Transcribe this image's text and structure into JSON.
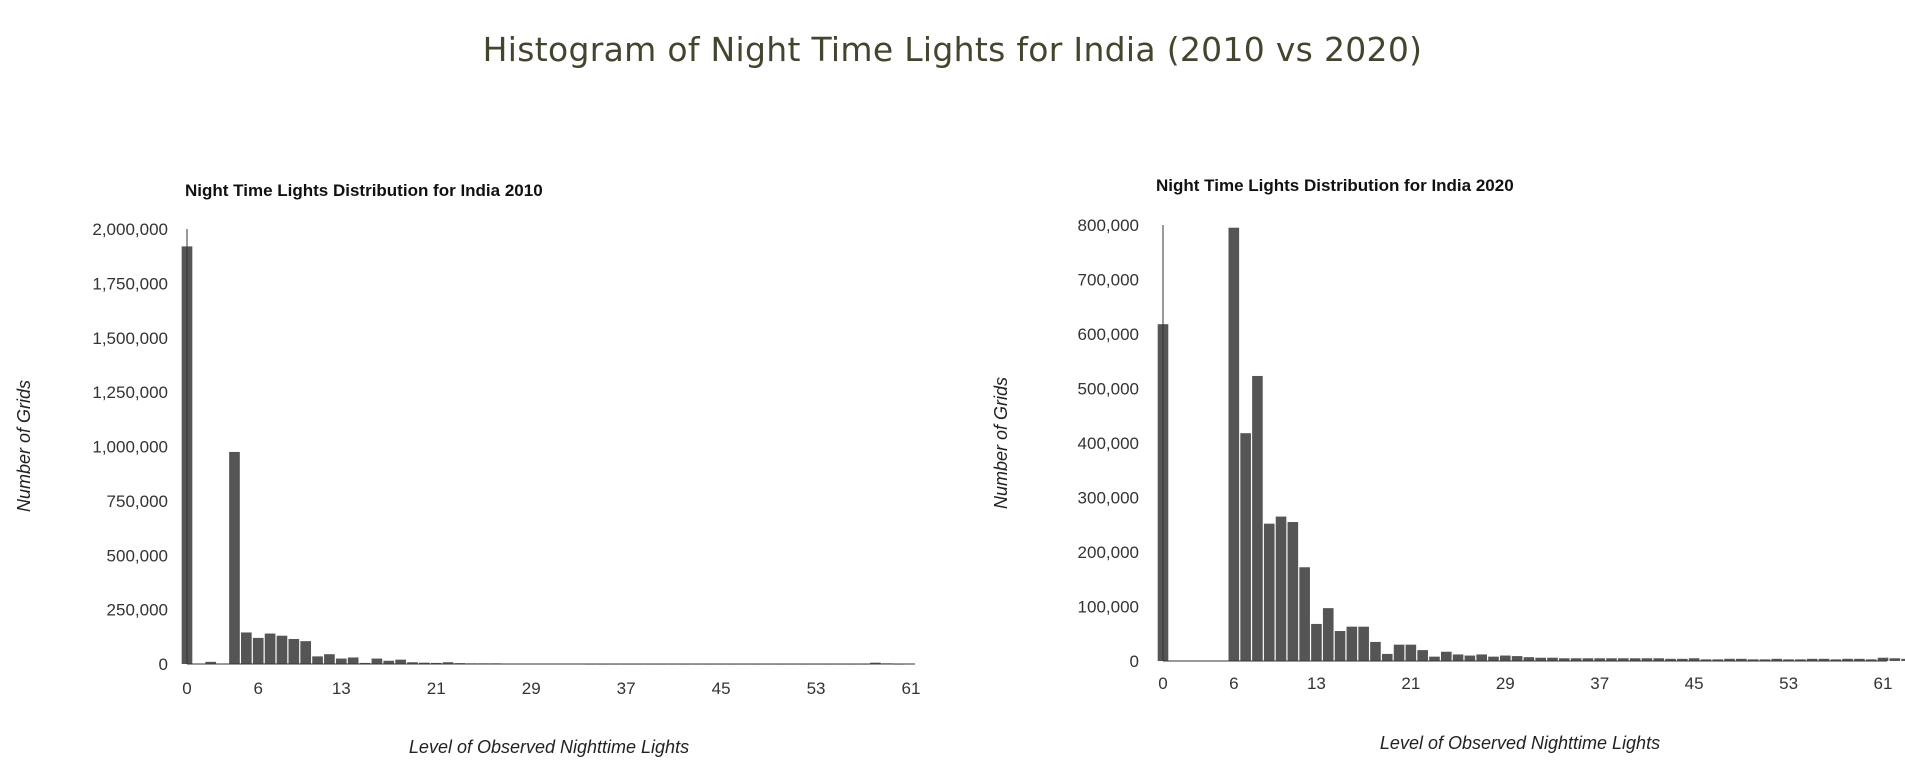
{
  "page_title": "Histogram of Night Time Lights for India (2010 vs 2020)",
  "chart_data": [
    {
      "type": "bar",
      "title": "Night Time Lights Distribution for India 2010",
      "xlabel": "Level of Observed Nighttime Lights",
      "ylabel": "Number of Grids",
      "xlim": [
        0,
        61
      ],
      "ylim": [
        0,
        2000000
      ],
      "x_ticks": [
        0,
        6,
        13,
        21,
        29,
        37,
        45,
        53,
        61
      ],
      "y_ticks": [
        0,
        250000,
        500000,
        750000,
        1000000,
        1250000,
        1500000,
        1750000,
        2000000
      ],
      "y_tick_labels": [
        "0",
        "250,000",
        "500,000",
        "750,000",
        "1,000,000",
        "1,250,000",
        "1,500,000",
        "1,750,000",
        "2,000,000"
      ],
      "x": [
        0,
        1,
        2,
        3,
        4,
        5,
        6,
        7,
        8,
        9,
        10,
        11,
        12,
        13,
        14,
        15,
        16,
        17,
        18,
        19,
        20,
        21,
        22,
        23,
        24,
        25,
        26,
        27,
        28,
        29,
        30,
        31,
        32,
        33,
        34,
        35,
        36,
        37,
        38,
        39,
        40,
        41,
        42,
        43,
        44,
        45,
        46,
        47,
        48,
        49,
        50,
        51,
        52,
        53,
        54,
        55,
        56,
        57,
        58,
        59,
        60
      ],
      "values": [
        1920000,
        0,
        10000,
        0,
        975000,
        145000,
        120000,
        140000,
        130000,
        115000,
        105000,
        35000,
        45000,
        25000,
        30000,
        5000,
        25000,
        15000,
        20000,
        8000,
        6000,
        5000,
        8000,
        4000,
        3000,
        3000,
        3000,
        2000,
        2000,
        2000,
        2000,
        1500,
        1500,
        1500,
        1000,
        1000,
        1000,
        1000,
        1000,
        1000,
        1000,
        1000,
        1000,
        1000,
        1000,
        1000,
        1000,
        1000,
        1000,
        1000,
        1000,
        1000,
        1000,
        1000,
        1000,
        1000,
        1000,
        1000,
        6000,
        3000,
        1000
      ]
    },
    {
      "type": "bar",
      "title": "Night Time Lights Distribution for India 2020",
      "xlabel": "Level of Observed Nighttime Lights",
      "ylabel": "Number of Grids",
      "xlim": [
        0,
        61
      ],
      "ylim": [
        0,
        800000
      ],
      "x_ticks": [
        0,
        6,
        13,
        21,
        29,
        37,
        45,
        53,
        61
      ],
      "y_ticks": [
        0,
        100000,
        200000,
        300000,
        400000,
        500000,
        600000,
        700000,
        800000
      ],
      "y_tick_labels": [
        "0",
        "100,000",
        "200,000",
        "300,000",
        "400,000",
        "500,000",
        "600,000",
        "700,000",
        "800,000"
      ],
      "x": [
        0,
        1,
        2,
        3,
        4,
        5,
        6,
        7,
        8,
        9,
        10,
        11,
        12,
        13,
        14,
        15,
        16,
        17,
        18,
        19,
        20,
        21,
        22,
        23,
        24,
        25,
        26,
        27,
        28,
        29,
        30,
        31,
        32,
        33,
        34,
        35,
        36,
        37,
        38,
        39,
        40,
        41,
        42,
        43,
        44,
        45,
        46,
        47,
        48,
        49,
        50,
        51,
        52,
        53,
        54,
        55,
        56,
        57,
        58,
        59,
        60,
        61,
        62,
        63
      ],
      "values": [
        618000,
        0,
        0,
        0,
        0,
        0,
        795000,
        418000,
        523000,
        252000,
        265000,
        255000,
        172000,
        68000,
        97000,
        55000,
        63000,
        63000,
        35000,
        13000,
        30000,
        30000,
        20000,
        8000,
        17000,
        12000,
        10000,
        12000,
        8000,
        10000,
        9000,
        7000,
        6000,
        6000,
        5000,
        5000,
        5000,
        5000,
        5000,
        5000,
        5000,
        5000,
        5000,
        4000,
        4000,
        5000,
        3000,
        3000,
        4000,
        4000,
        3000,
        3000,
        4000,
        3000,
        3000,
        4000,
        4000,
        3000,
        4000,
        4000,
        3000,
        6000,
        5000,
        4000
      ]
    }
  ]
}
